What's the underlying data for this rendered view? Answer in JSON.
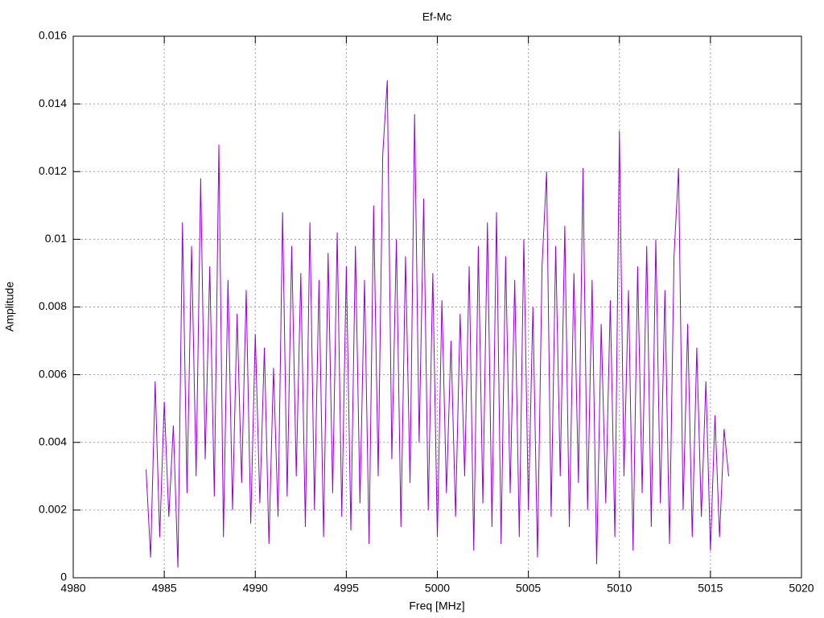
{
  "chart_data": {
    "type": "line",
    "title": "Ef-Mc",
    "xlabel": "Freq [MHz]",
    "ylabel": "Amplitude",
    "color": "#9400d3",
    "grid": true,
    "xlim": [
      4980,
      5020
    ],
    "xticks": [
      4980,
      4985,
      4990,
      4995,
      5000,
      5005,
      5010,
      5015,
      5020
    ],
    "ylim": [
      0,
      0.016
    ],
    "yticks": [
      0,
      0.002,
      0.004,
      0.006,
      0.008,
      0.01,
      0.012,
      0.014,
      0.016
    ],
    "x": [
      4984,
      4984.25,
      4984.5,
      4984.75,
      4985,
      4985.25,
      4985.5,
      4985.75,
      4986,
      4986.25,
      4986.5,
      4986.75,
      4987,
      4987.25,
      4987.5,
      4987.75,
      4988,
      4988.25,
      4988.5,
      4988.75,
      4989,
      4989.25,
      4989.5,
      4989.75,
      4990,
      4990.25,
      4990.5,
      4990.75,
      4991,
      4991.25,
      4991.5,
      4991.75,
      4992,
      4992.25,
      4992.5,
      4992.75,
      4993,
      4993.25,
      4993.5,
      4993.75,
      4994,
      4994.25,
      4994.5,
      4994.75,
      4995,
      4995.25,
      4995.5,
      4995.75,
      4996,
      4996.25,
      4996.5,
      4996.75,
      4997,
      4997.25,
      4997.5,
      4997.75,
      4998,
      4998.25,
      4998.5,
      4998.75,
      4999,
      4999.25,
      4999.5,
      4999.75,
      5000,
      5000.25,
      5000.5,
      5000.75,
      5001,
      5001.25,
      5001.5,
      5001.75,
      5002,
      5002.25,
      5002.5,
      5002.75,
      5003,
      5003.25,
      5003.5,
      5003.75,
      5004,
      5004.25,
      5004.5,
      5004.75,
      5005,
      5005.25,
      5005.5,
      5005.75,
      5006,
      5006.25,
      5006.5,
      5006.75,
      5007,
      5007.25,
      5007.5,
      5007.75,
      5008,
      5008.25,
      5008.5,
      5008.75,
      5009,
      5009.25,
      5009.5,
      5009.75,
      5010,
      5010.25,
      5010.5,
      5010.75,
      5011,
      5011.25,
      5011.5,
      5011.75,
      5012,
      5012.25,
      5012.5,
      5012.75,
      5013,
      5013.25,
      5013.5,
      5013.75,
      5014,
      5014.25,
      5014.5,
      5014.75,
      5015,
      5015.25,
      5015.5,
      5015.75,
      5016
    ],
    "values": [
      0.0032,
      0.0006,
      0.0058,
      0.0012,
      0.0052,
      0.0018,
      0.0045,
      0.0003,
      0.0105,
      0.0025,
      0.0098,
      0.003,
      0.0118,
      0.0035,
      0.0092,
      0.0024,
      0.0128,
      0.0012,
      0.0088,
      0.002,
      0.0078,
      0.0028,
      0.0085,
      0.0016,
      0.0072,
      0.0022,
      0.0068,
      0.001,
      0.0062,
      0.0018,
      0.0108,
      0.0024,
      0.0098,
      0.003,
      0.009,
      0.0015,
      0.0105,
      0.002,
      0.0088,
      0.0012,
      0.0096,
      0.0025,
      0.0102,
      0.0018,
      0.0092,
      0.0014,
      0.0098,
      0.0022,
      0.0088,
      0.001,
      0.011,
      0.003,
      0.0125,
      0.0147,
      0.0035,
      0.01,
      0.0015,
      0.0095,
      0.0028,
      0.0137,
      0.004,
      0.0112,
      0.002,
      0.009,
      0.0012,
      0.0082,
      0.0025,
      0.007,
      0.0018,
      0.0078,
      0.003,
      0.0092,
      0.0008,
      0.0098,
      0.0022,
      0.0105,
      0.0015,
      0.0108,
      0.001,
      0.0095,
      0.0025,
      0.0088,
      0.0012,
      0.01,
      0.002,
      0.008,
      0.0006,
      0.0092,
      0.012,
      0.0018,
      0.0098,
      0.003,
      0.0104,
      0.0015,
      0.009,
      0.0028,
      0.0121,
      0.002,
      0.0088,
      0.0004,
      0.0075,
      0.0022,
      0.0082,
      0.0012,
      0.0132,
      0.003,
      0.0085,
      0.0008,
      0.0092,
      0.0025,
      0.0098,
      0.0015,
      0.01,
      0.0022,
      0.0085,
      0.001,
      0.0095,
      0.0121,
      0.002,
      0.0075,
      0.0012,
      0.0068,
      0.0018,
      0.0058,
      0.0008,
      0.0048,
      0.0012,
      0.0044,
      0.003
    ]
  }
}
